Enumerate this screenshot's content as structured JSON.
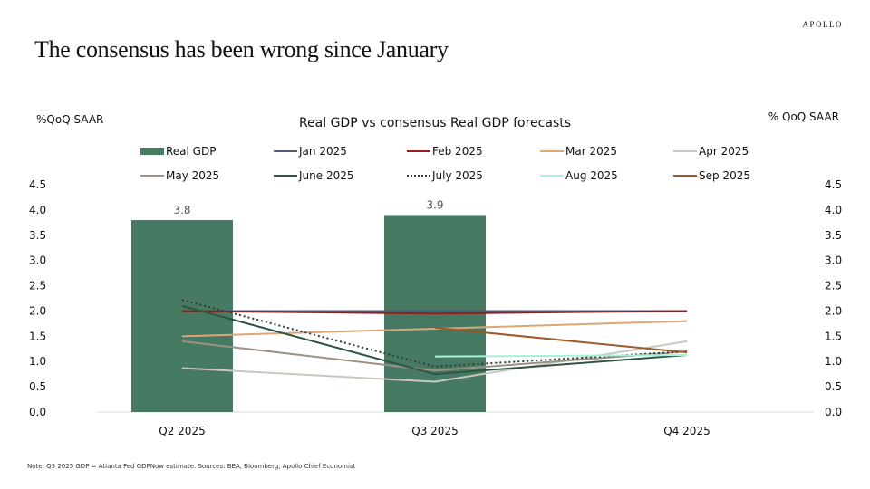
{
  "brand": "APOLLO",
  "page_title": "The consensus has been wrong since January",
  "footnote": "Note: Q3 2025 GDP = Atlanta Fed GDPNow estimate. Sources: BEA, Bloomberg, Apollo Chief Economist",
  "chart_data": {
    "type": "bar",
    "title": "Real GDP vs consensus Real GDP forecasts",
    "ylabel_left": "%QoQ SAAR",
    "ylabel_right": "% QoQ SAAR",
    "xlabel": "",
    "categories": [
      "Q2 2025",
      "Q3 2025",
      "Q4 2025"
    ],
    "ylim": [
      0,
      4.5
    ],
    "yticks": [
      "0.0",
      "0.5",
      "1.0",
      "1.5",
      "2.0",
      "2.5",
      "3.0",
      "3.5",
      "4.0",
      "4.5"
    ],
    "legend_position": "top",
    "grid": false,
    "bars": {
      "name": "Real GDP",
      "color": "#477a62",
      "values": [
        3.8,
        3.9,
        null
      ],
      "labels": [
        "3.8",
        "3.9",
        ""
      ]
    },
    "series": [
      {
        "name": "Jan 2025",
        "type": "line",
        "color": "#4a5a7a",
        "style": "solid",
        "values": [
          2.0,
          2.0,
          2.0
        ]
      },
      {
        "name": "Feb 2025",
        "type": "line",
        "color": "#9b1b1b",
        "style": "solid",
        "values": [
          2.0,
          1.95,
          2.0
        ]
      },
      {
        "name": "Mar 2025",
        "type": "line",
        "color": "#dca676",
        "style": "solid",
        "values": [
          1.5,
          1.65,
          1.8
        ]
      },
      {
        "name": "Apr 2025",
        "type": "line",
        "color": "#c9c7c0",
        "style": "solid",
        "values": [
          0.87,
          0.6,
          1.4
        ]
      },
      {
        "name": "May 2025",
        "type": "line",
        "color": "#9b9286",
        "style": "solid",
        "values": [
          1.4,
          0.82,
          1.2
        ]
      },
      {
        "name": "June 2025",
        "type": "line",
        "color": "#2f5443",
        "style": "solid",
        "values": [
          2.1,
          0.75,
          1.13
        ]
      },
      {
        "name": "July 2025",
        "type": "line",
        "color": "#2f3b35",
        "style": "dotted",
        "values": [
          2.22,
          0.9,
          1.2
        ]
      },
      {
        "name": "Aug 2025",
        "type": "line",
        "color": "#a6f0dc",
        "style": "solid",
        "values": [
          null,
          1.1,
          1.13
        ]
      },
      {
        "name": "Sep 2025",
        "type": "line",
        "color": "#9a5a2a",
        "style": "solid",
        "values": [
          null,
          1.67,
          1.18
        ]
      }
    ]
  }
}
